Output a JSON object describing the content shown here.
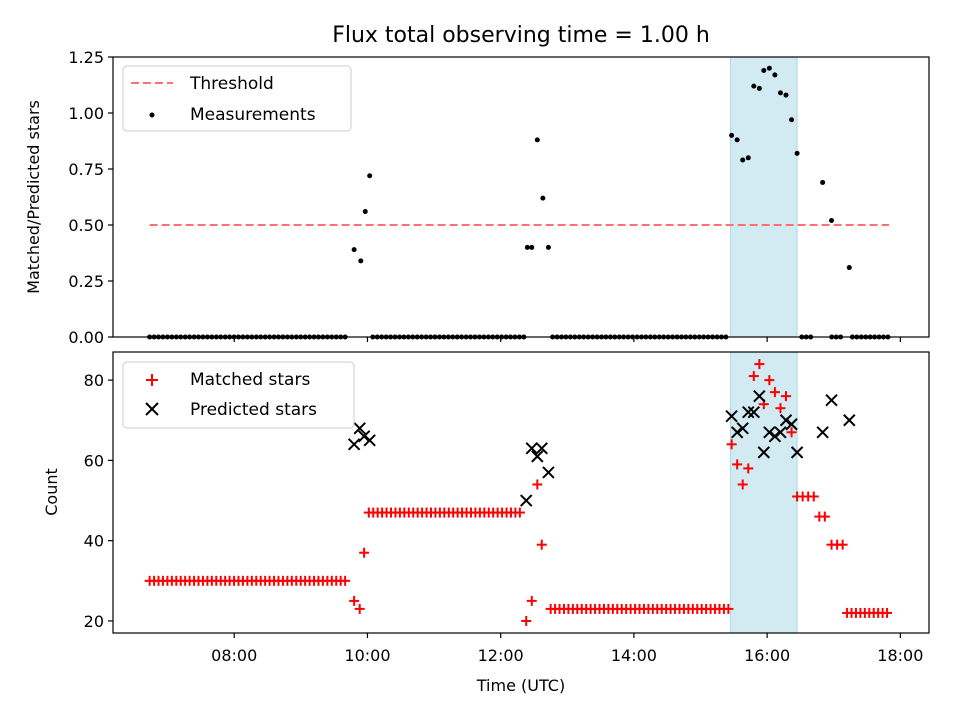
{
  "figure": {
    "title": "Flux total observing time = 1.00 h",
    "xlabel": "Time (UTC)",
    "xticks": [
      "08:00",
      "10:00",
      "12:00",
      "14:00",
      "16:00",
      "18:00"
    ]
  },
  "chart_data": [
    {
      "type": "scatter",
      "panel": "top",
      "ylabel": "Matched/Predicted stars",
      "ylim": [
        0,
        1.25
      ],
      "yticks": [
        "0.00",
        "0.25",
        "0.50",
        "0.75",
        "1.00",
        "1.25"
      ],
      "xlim_hours": [
        6.18,
        18.43
      ],
      "highlight_span_hours": [
        15.45,
        16.45
      ],
      "highlight_color": "#add8e6",
      "threshold": {
        "name": "Threshold",
        "value": 0.5,
        "x_range_hours": [
          6.73,
          17.83
        ],
        "color": "#ff6f6f",
        "style": "dashed"
      },
      "series": [
        {
          "name": "Measurements",
          "color": "#000000",
          "marker": "dot",
          "zero_runs_hours": [
            [
              6.73,
              9.73
            ],
            [
              10.08,
              12.35
            ],
            [
              12.78,
              15.42
            ],
            [
              16.52,
              16.72
            ],
            [
              16.97,
              17.15
            ],
            [
              17.28,
              17.83
            ]
          ],
          "zero_run_step_hours": 0.0667,
          "points": [
            {
              "x": "09:48",
              "y": 0.39
            },
            {
              "x": "09:54",
              "y": 0.34
            },
            {
              "x": "09:58",
              "y": 0.56
            },
            {
              "x": "10:02",
              "y": 0.72
            },
            {
              "x": "12:24",
              "y": 0.4
            },
            {
              "x": "12:28",
              "y": 0.4
            },
            {
              "x": "12:33",
              "y": 0.88
            },
            {
              "x": "12:38",
              "y": 0.62
            },
            {
              "x": "12:43",
              "y": 0.4
            },
            {
              "x": "15:28",
              "y": 0.9
            },
            {
              "x": "15:33",
              "y": 0.88
            },
            {
              "x": "15:38",
              "y": 0.79
            },
            {
              "x": "15:43",
              "y": 0.8
            },
            {
              "x": "15:48",
              "y": 1.12
            },
            {
              "x": "15:53",
              "y": 1.11
            },
            {
              "x": "15:57",
              "y": 1.19
            },
            {
              "x": "16:02",
              "y": 1.2
            },
            {
              "x": "16:07",
              "y": 1.17
            },
            {
              "x": "16:12",
              "y": 1.09
            },
            {
              "x": "16:17",
              "y": 1.08
            },
            {
              "x": "16:22",
              "y": 0.97
            },
            {
              "x": "16:27",
              "y": 0.82
            },
            {
              "x": "16:50",
              "y": 0.69
            },
            {
              "x": "16:58",
              "y": 0.52
            },
            {
              "x": "17:14",
              "y": 0.31
            }
          ]
        }
      ]
    },
    {
      "type": "scatter",
      "panel": "bottom",
      "ylabel": "Count",
      "ylim": [
        17,
        87
      ],
      "yticks": [
        "20",
        "40",
        "60",
        "80"
      ],
      "xlim_hours": [
        6.18,
        18.43
      ],
      "highlight_span_hours": [
        15.45,
        16.45
      ],
      "highlight_color": "#add8e6",
      "series": [
        {
          "name": "Matched stars",
          "color": "#ff0000",
          "marker": "plus",
          "flat_runs": [
            {
              "from_hours": 6.73,
              "to_hours": 9.73,
              "value": 30
            },
            {
              "from_hours": 10.02,
              "to_hours": 12.3,
              "value": 47
            },
            {
              "from_hours": 12.75,
              "to_hours": 15.42,
              "value": 23
            },
            {
              "from_hours": 17.2,
              "to_hours": 17.82,
              "value": 22
            }
          ],
          "run_step_hours": 0.0667,
          "points": [
            {
              "x": "09:48",
              "y": 25
            },
            {
              "x": "09:53",
              "y": 23
            },
            {
              "x": "09:57",
              "y": 37
            },
            {
              "x": "12:23",
              "y": 20
            },
            {
              "x": "12:28",
              "y": 25
            },
            {
              "x": "12:33",
              "y": 54
            },
            {
              "x": "12:37",
              "y": 39
            },
            {
              "x": "15:28",
              "y": 64
            },
            {
              "x": "15:33",
              "y": 59
            },
            {
              "x": "15:38",
              "y": 54
            },
            {
              "x": "15:43",
              "y": 58
            },
            {
              "x": "15:48",
              "y": 81
            },
            {
              "x": "15:53",
              "y": 84
            },
            {
              "x": "15:57",
              "y": 74
            },
            {
              "x": "16:02",
              "y": 80
            },
            {
              "x": "16:07",
              "y": 77
            },
            {
              "x": "16:12",
              "y": 73
            },
            {
              "x": "16:17",
              "y": 76
            },
            {
              "x": "16:22",
              "y": 67
            },
            {
              "x": "16:27",
              "y": 51
            },
            {
              "x": "16:32",
              "y": 51
            },
            {
              "x": "16:37",
              "y": 51
            },
            {
              "x": "16:42",
              "y": 51
            },
            {
              "x": "16:47",
              "y": 46
            },
            {
              "x": "16:52",
              "y": 46
            },
            {
              "x": "16:58",
              "y": 39
            },
            {
              "x": "17:03",
              "y": 39
            },
            {
              "x": "17:08",
              "y": 39
            }
          ]
        },
        {
          "name": "Predicted stars",
          "color": "#000000",
          "marker": "x",
          "points": [
            {
              "x": "09:48",
              "y": 64
            },
            {
              "x": "09:53",
              "y": 68
            },
            {
              "x": "09:57",
              "y": 66
            },
            {
              "x": "10:02",
              "y": 65
            },
            {
              "x": "12:23",
              "y": 50
            },
            {
              "x": "12:28",
              "y": 63
            },
            {
              "x": "12:33",
              "y": 61
            },
            {
              "x": "12:37",
              "y": 63
            },
            {
              "x": "12:43",
              "y": 57
            },
            {
              "x": "15:28",
              "y": 71
            },
            {
              "x": "15:33",
              "y": 67
            },
            {
              "x": "15:38",
              "y": 68
            },
            {
              "x": "15:43",
              "y": 72
            },
            {
              "x": "15:48",
              "y": 72
            },
            {
              "x": "15:53",
              "y": 76
            },
            {
              "x": "15:57",
              "y": 62
            },
            {
              "x": "16:02",
              "y": 67
            },
            {
              "x": "16:07",
              "y": 66
            },
            {
              "x": "16:12",
              "y": 67
            },
            {
              "x": "16:17",
              "y": 70
            },
            {
              "x": "16:22",
              "y": 69
            },
            {
              "x": "16:27",
              "y": 62
            },
            {
              "x": "16:50",
              "y": 67
            },
            {
              "x": "16:58",
              "y": 75
            },
            {
              "x": "17:14",
              "y": 70
            }
          ]
        }
      ]
    }
  ]
}
